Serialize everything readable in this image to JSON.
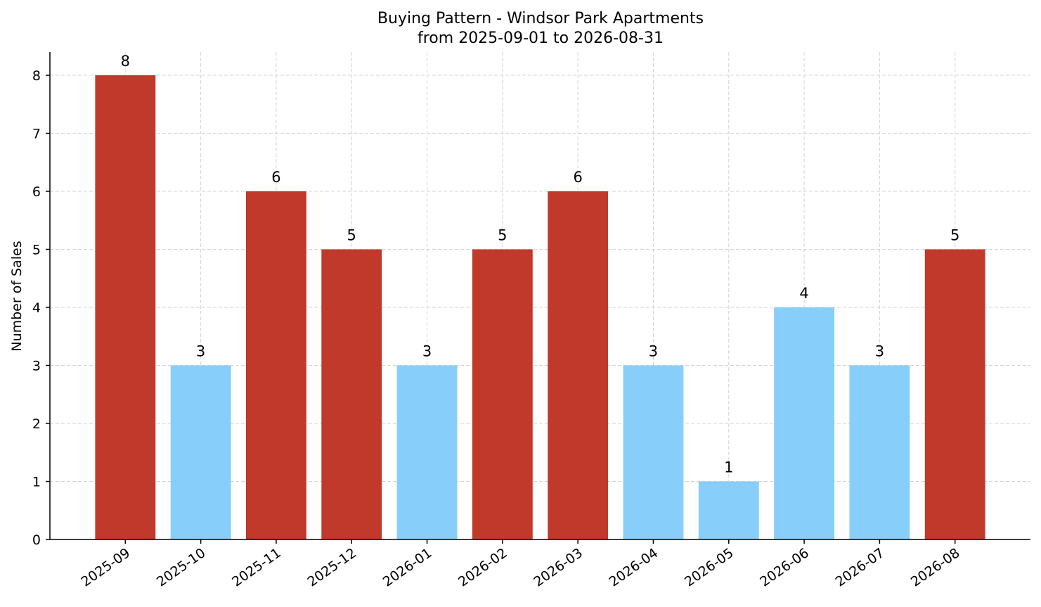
{
  "chart_data": {
    "type": "bar",
    "title": "Buying Pattern - Windsor Park Apartments",
    "subtitle": "from 2025-09-01 to 2026-08-31",
    "xlabel": "",
    "ylabel": "Number of Sales",
    "categories": [
      "2025-09",
      "2025-10",
      "2025-11",
      "2025-12",
      "2026-01",
      "2026-02",
      "2026-03",
      "2026-04",
      "2026-05",
      "2026-06",
      "2026-07",
      "2026-08"
    ],
    "values": [
      8,
      3,
      6,
      5,
      3,
      5,
      6,
      3,
      1,
      4,
      3,
      5
    ],
    "bar_highlight": [
      true,
      false,
      true,
      true,
      false,
      true,
      true,
      false,
      false,
      false,
      false,
      true
    ],
    "ylim": [
      0,
      8.4
    ],
    "yticks": [
      0,
      1,
      2,
      3,
      4,
      5,
      6,
      7,
      8
    ],
    "grid": true,
    "colors": {
      "high": "#c0392b",
      "low": "#87cefa"
    }
  }
}
